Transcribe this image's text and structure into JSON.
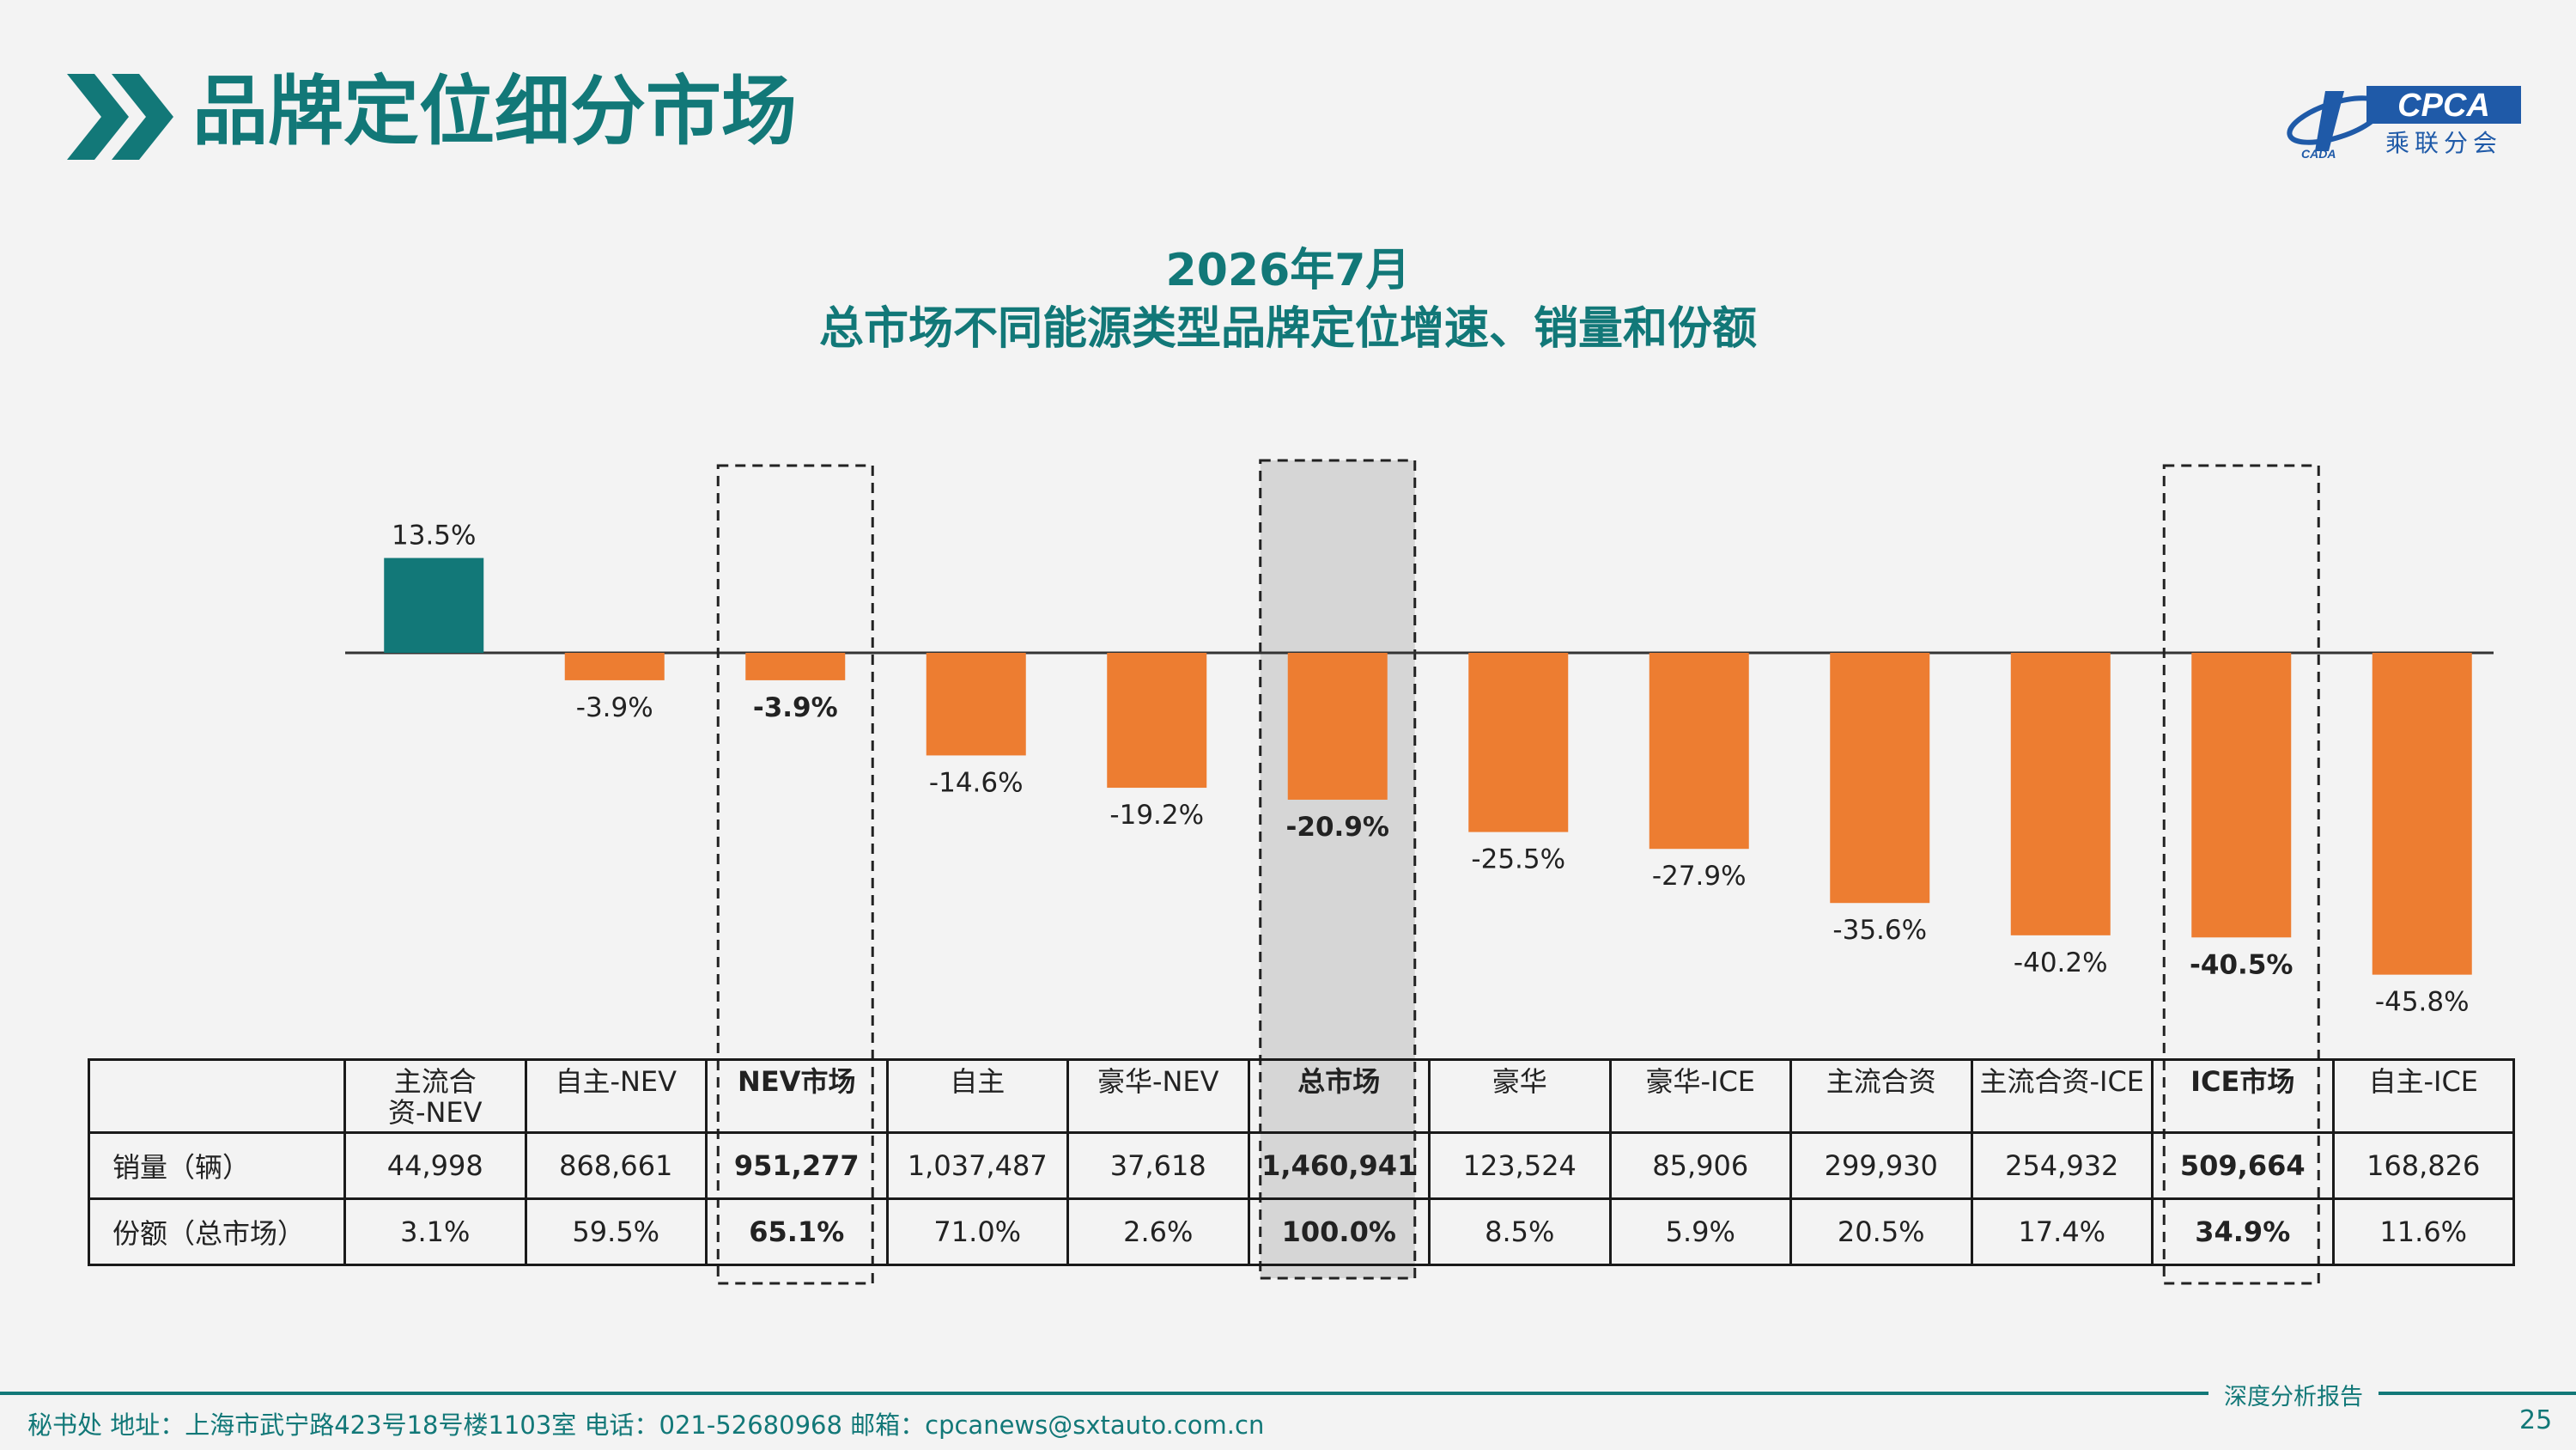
{
  "header": {
    "title": "品牌定位细分市场"
  },
  "logo": {
    "text_cpca": "CPCA",
    "text_cn": "乘联分会",
    "text_small": "CADA"
  },
  "chart_data": {
    "type": "bar",
    "title": "2026年7月",
    "subtitle": "总市场不同能源类型品牌定位增速、销量和份额",
    "categories": [
      "主流合资-NEV",
      "自主-NEV",
      "NEV市场",
      "自主",
      "豪华-NEV",
      "总市场",
      "豪华",
      "豪华-ICE",
      "主流合资",
      "主流合资-ICE",
      "ICE市场",
      "自主-ICE"
    ],
    "series": [
      {
        "values": [
          13.5,
          -3.9,
          -3.9,
          -14.6,
          -19.2,
          -20.9,
          -25.5,
          -27.9,
          -35.6,
          -40.2,
          -40.5,
          -45.8
        ]
      }
    ],
    "value_labels": [
      "13.5%",
      "-3.9%",
      "-3.9%",
      "-14.6%",
      "-19.2%",
      "-20.9%",
      "-25.5%",
      "-27.9%",
      "-35.6%",
      "-40.2%",
      "-40.5%",
      "-45.8%"
    ],
    "bold_labels": [
      false,
      false,
      true,
      false,
      false,
      true,
      false,
      false,
      false,
      false,
      true,
      false
    ],
    "colors": {
      "positive": "#127878",
      "negative": "#ed7d31"
    },
    "highlight_boxes": [
      "NEV市场",
      "ICE市场"
    ],
    "highlight_fill": "总市场",
    "grid": false
  },
  "table": {
    "header": [
      "",
      [
        "主流合",
        "资-NEV"
      ],
      "自主-NEV",
      "NEV市场",
      "自主",
      "豪华-NEV",
      "总市场",
      "豪华",
      "豪华-ICE",
      "主流合资",
      "主流合资-ICE",
      "ICE市场",
      "自主-ICE"
    ],
    "rows": [
      {
        "label": "销量（辆）",
        "values": [
          "44,998",
          "868,661",
          "951,277",
          "1,037,487",
          "37,618",
          "1,460,941",
          "123,524",
          "85,906",
          "299,930",
          "254,932",
          "509,664",
          "168,826"
        ]
      },
      {
        "label": "份额（总市场）",
        "values": [
          "3.1%",
          "59.5%",
          "65.1%",
          "71.0%",
          "2.6%",
          "100.0%",
          "8.5%",
          "5.9%",
          "20.5%",
          "17.4%",
          "34.9%",
          "11.6%"
        ]
      }
    ],
    "bold_columns": [
      2,
      5,
      10
    ]
  },
  "footer": {
    "address": "秘书处   地址：上海市武宁路423号18号楼1103室  电话：021-52680968   邮箱：cpcanews@sxtauto.com.cn",
    "report_label": "深度分析报告",
    "page_number": "25"
  }
}
